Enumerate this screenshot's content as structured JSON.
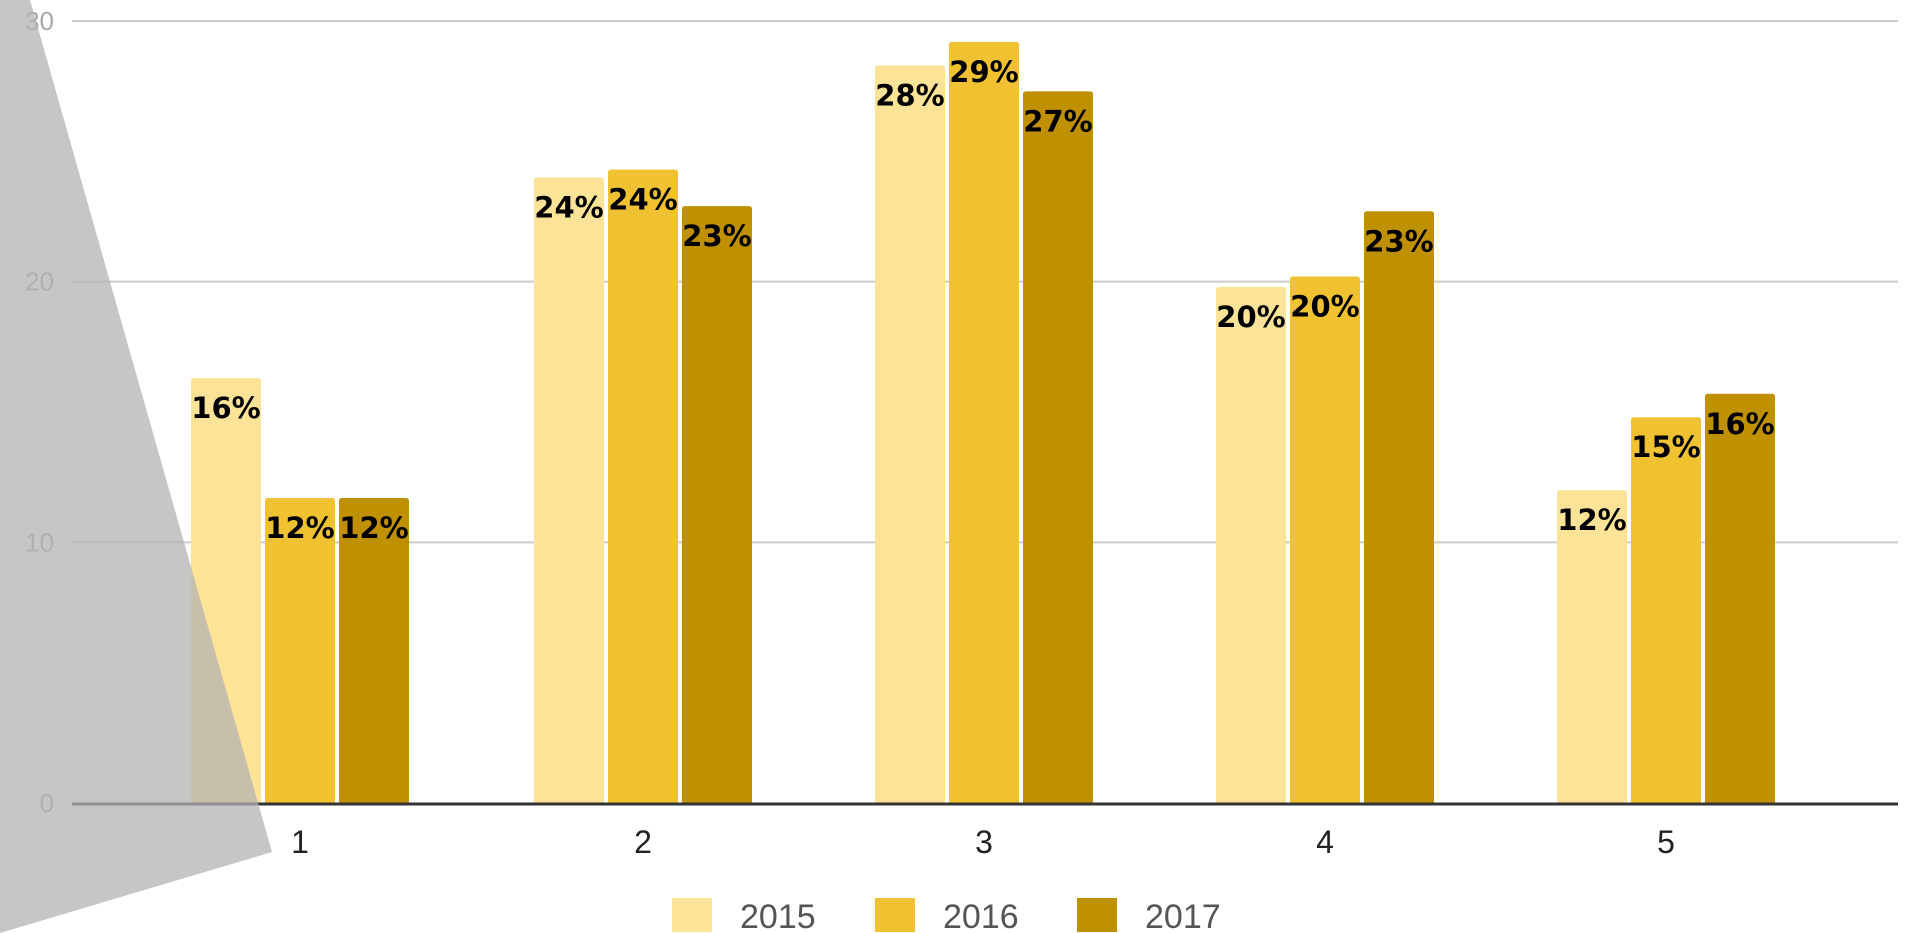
{
  "chart_data": {
    "type": "bar",
    "categories": [
      "1",
      "2",
      "3",
      "4",
      "5"
    ],
    "series": [
      {
        "name": "2015",
        "color": "#fde398",
        "values": [
          16.3,
          24,
          28.3,
          19.8,
          12
        ],
        "labels": [
          "16%",
          "24%",
          "28%",
          "20%",
          "12%"
        ]
      },
      {
        "name": "2016",
        "color": "#f0c232",
        "values": [
          11.7,
          24.3,
          29.2,
          20.2,
          14.8
        ],
        "labels": [
          "12%",
          "24%",
          "29%",
          "20%",
          "15%"
        ]
      },
      {
        "name": "2017",
        "color": "#bf9000",
        "values": [
          11.7,
          22.9,
          27.3,
          22.7,
          15.7
        ],
        "labels": [
          "12%",
          "23%",
          "27%",
          "23%",
          "16%"
        ]
      }
    ],
    "ylim": [
      0,
      30
    ],
    "yticks": [
      "0",
      "10",
      "20",
      "30"
    ],
    "title": "",
    "xlabel": "",
    "ylabel": "",
    "grid": true,
    "legend_position": "bottom",
    "gridline_color": "#cccccc",
    "baseline_color": "#333333",
    "overlay_color": "#b3b3b3"
  }
}
